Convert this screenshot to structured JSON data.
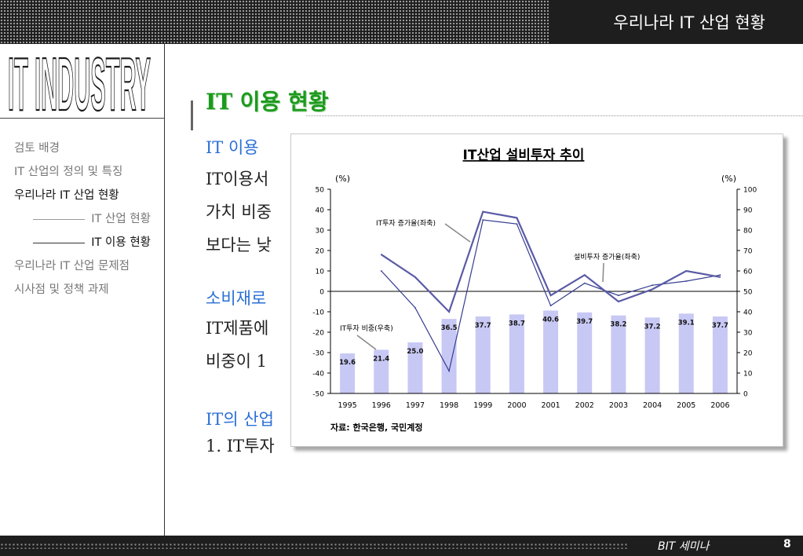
{
  "header": {
    "title": "우리나라 IT 산업 현황"
  },
  "sidebar": {
    "logo_text": "IT INDUSTRY",
    "items": [
      {
        "label": "검토 배경"
      },
      {
        "label": "IT 산업의 정의 및 특징"
      },
      {
        "label": "우리나라 IT 산업 현황"
      },
      {
        "label": "IT 산업 현황"
      },
      {
        "label": "IT 이용 현황"
      },
      {
        "label": "우리나라 IT 산업 문제점"
      },
      {
        "label": "시사점 및 정책 과제"
      }
    ]
  },
  "main": {
    "section_title": "IT 이용 현황",
    "lines": [
      "IT 이용",
      "IT이용서",
      "가치 비중",
      "보다는 낮",
      "소비재로",
      "IT제품에",
      "비중이 1",
      "IT의 산업",
      "1. IT투자"
    ]
  },
  "chart_data": {
    "type": "bar+line",
    "title": "IT산업 설비투자 추이",
    "x": [
      "1995",
      "1996",
      "1997",
      "1998",
      "1999",
      "2000",
      "2001",
      "2002",
      "2003",
      "2004",
      "2005",
      "2006"
    ],
    "left_axis": {
      "unit": "(%)",
      "ylim": [
        -50,
        50
      ],
      "ticks": [
        50,
        40,
        30,
        20,
        10,
        0,
        -10,
        -20,
        -30,
        -40,
        -50
      ]
    },
    "right_axis": {
      "unit": "(%)",
      "ylim": [
        0,
        100
      ],
      "ticks": [
        100,
        90,
        80,
        70,
        60,
        50,
        40,
        30,
        20,
        10,
        0
      ]
    },
    "series": [
      {
        "name": "IT투자 비중(우축)",
        "type": "bar",
        "axis": "right",
        "values": [
          19.6,
          21.4,
          25.0,
          36.5,
          37.7,
          38.7,
          40.6,
          39.7,
          38.2,
          37.2,
          39.1,
          37.7
        ]
      },
      {
        "name": "IT투자 증가율(좌축)",
        "type": "line",
        "axis": "left",
        "values": [
          null,
          10,
          -8,
          -39,
          35,
          33,
          -7,
          4,
          -2,
          3,
          5,
          8
        ]
      },
      {
        "name": "설비투자 증가율(좌축)",
        "type": "line",
        "axis": "left",
        "values": [
          null,
          18,
          7,
          -10,
          39,
          36,
          -2,
          8,
          -5,
          1,
          10,
          7
        ]
      }
    ],
    "source": "자료: 한국은행, 국민계정",
    "colors": {
      "bar": "#c8c8f5",
      "line_it": "#353d90",
      "line_facility": "#5a5aa6",
      "axis": "#000000"
    }
  },
  "footer": {
    "label": "BIT  세미나",
    "page": "8"
  }
}
